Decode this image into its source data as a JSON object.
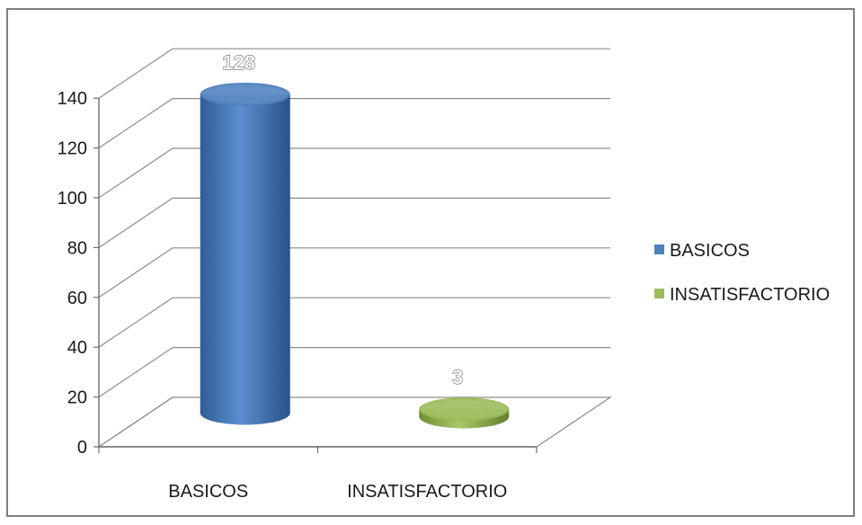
{
  "chart_data": {
    "type": "bar",
    "style": "3d-cylinder",
    "categories": [
      "BASICOS",
      "INSATISFACTORIO"
    ],
    "values": [
      128,
      3
    ],
    "data_labels": [
      "128",
      "3"
    ],
    "ylim": [
      0,
      140
    ],
    "yticks": [
      "0",
      "20",
      "40",
      "60",
      "80",
      "100",
      "120",
      "140"
    ],
    "grid": true,
    "legend_position": "right",
    "legend": [
      "BASICOS",
      "INSATISFACTORIO"
    ],
    "colors": [
      "#4f81bd",
      "#9bbb59"
    ]
  }
}
